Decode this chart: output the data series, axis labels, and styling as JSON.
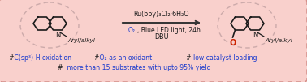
{
  "bg_color": "#f9d0cc",
  "border_color": "#d4908a",
  "arrow_color": "#333333",
  "text_black": "#1a1a1a",
  "text_blue": "#1a3acc",
  "text_red_o": "#cc2200",
  "reaction_above": "Ru(bpy)₃Cl₂·6H₂O",
  "reaction_below1_blue": "O₂",
  "reaction_below1_black": ", Blue LED light, 24h",
  "reaction_below2": "DBU",
  "bullet_hash": "#",
  "bullet1_text": " C(sp³)-H oxidation",
  "bullet2_text": " O₂ as an oxidant",
  "bullet3_text": "  low catalyst loading",
  "bullet4_text": "   more than 15 substrates with upto 95% yield",
  "label_arylalkyl": "Aryl/alkyl",
  "label_n": "N",
  "label_o": "O",
  "figsize": [
    3.78,
    1.01
  ],
  "dpi": 100
}
